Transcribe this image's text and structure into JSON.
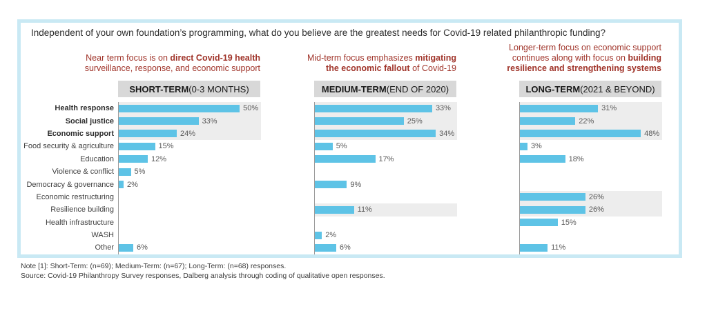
{
  "title": "Independent of your own foundation’s programming, what do you believe are the greatest needs for Covid-19 related philanthropic funding?",
  "colors": {
    "bar": "#5EC3E6",
    "panel_border": "#C9E9F4",
    "header_bg": "#D8D8D8",
    "annotation_red": "#A0342A",
    "band": "#EDEDED",
    "axis": "#9b9b9b",
    "value_label": "#595959"
  },
  "chart_data": {
    "type": "bar",
    "orientation": "horizontal",
    "value_suffix": "%",
    "categories": [
      "Health response",
      "Social justice",
      "Economic support",
      "Food security & agriculture",
      "Education",
      "Violence & conflict",
      "Democracy & governance",
      "Economic restructuring",
      "Resilience building",
      "Health infrastructure",
      "WASH",
      "Other"
    ],
    "bold_rows": [
      0,
      1,
      2
    ],
    "series": [
      {
        "name": "Short-Term (0-3 months)",
        "n": 69,
        "values": [
          50,
          33,
          24,
          15,
          12,
          5,
          2,
          null,
          null,
          null,
          null,
          6
        ]
      },
      {
        "name": "Medium-Term (end of 2020)",
        "n": 67,
        "values": [
          33,
          25,
          34,
          5,
          17,
          null,
          9,
          null,
          11,
          null,
          2,
          6
        ]
      },
      {
        "name": "Long-Term (2021 & beyond)",
        "n": 68,
        "values": [
          31,
          22,
          48,
          3,
          18,
          null,
          null,
          26,
          26,
          15,
          null,
          11
        ]
      }
    ],
    "legend_position": "none",
    "grid": false
  },
  "panels": [
    {
      "id": "short",
      "header": [
        {
          "t": "SHORT-TERM",
          "b": true
        },
        {
          "t": " (0-3 MONTHS)",
          "b": false
        }
      ],
      "annotation_lines": [
        [
          {
            "t": "Near term focus is on ",
            "b": false
          },
          {
            "t": "direct Covid-19 health",
            "b": true
          }
        ],
        [
          {
            "t": "surveillance, response, and economic support",
            "b": false
          }
        ]
      ],
      "highlight_rows": [
        0,
        1,
        2
      ]
    },
    {
      "id": "medium",
      "header": [
        {
          "t": "MEDIUM-TERM",
          "b": true
        },
        {
          "t": " (END OF 2020)",
          "b": false
        }
      ],
      "annotation_lines": [
        [
          {
            "t": "Mid-term focus emphasizes ",
            "b": false
          },
          {
            "t": "mitigating",
            "b": true
          }
        ],
        [
          {
            "t": "the economic fallout",
            "b": true
          },
          {
            "t": " of Covid-19",
            "b": false
          }
        ]
      ],
      "highlight_rows": [
        0,
        1,
        2,
        8
      ]
    },
    {
      "id": "long",
      "header": [
        {
          "t": "LONG-TERM",
          "b": true
        },
        {
          "t": " (2021 & BEYOND)",
          "b": false
        }
      ],
      "annotation_lines": [
        [
          {
            "t": "Longer-term focus on economic support",
            "b": false
          }
        ],
        [
          {
            "t": "continues along with focus on ",
            "b": false
          },
          {
            "t": "building",
            "b": true
          }
        ],
        [
          {
            "t": "resilience and strengthening systems",
            "b": true
          }
        ]
      ],
      "highlight_rows": [
        0,
        1,
        2,
        7,
        8
      ]
    }
  ],
  "notes": {
    "note": "Note [1]: Short-Term: (n=69); Medium-Term: (n=67); Long-Term: (n=68) responses.",
    "source": "Source: Covid-19 Philanthropy Survey responses, Dalberg analysis through coding of qualitative open responses."
  }
}
